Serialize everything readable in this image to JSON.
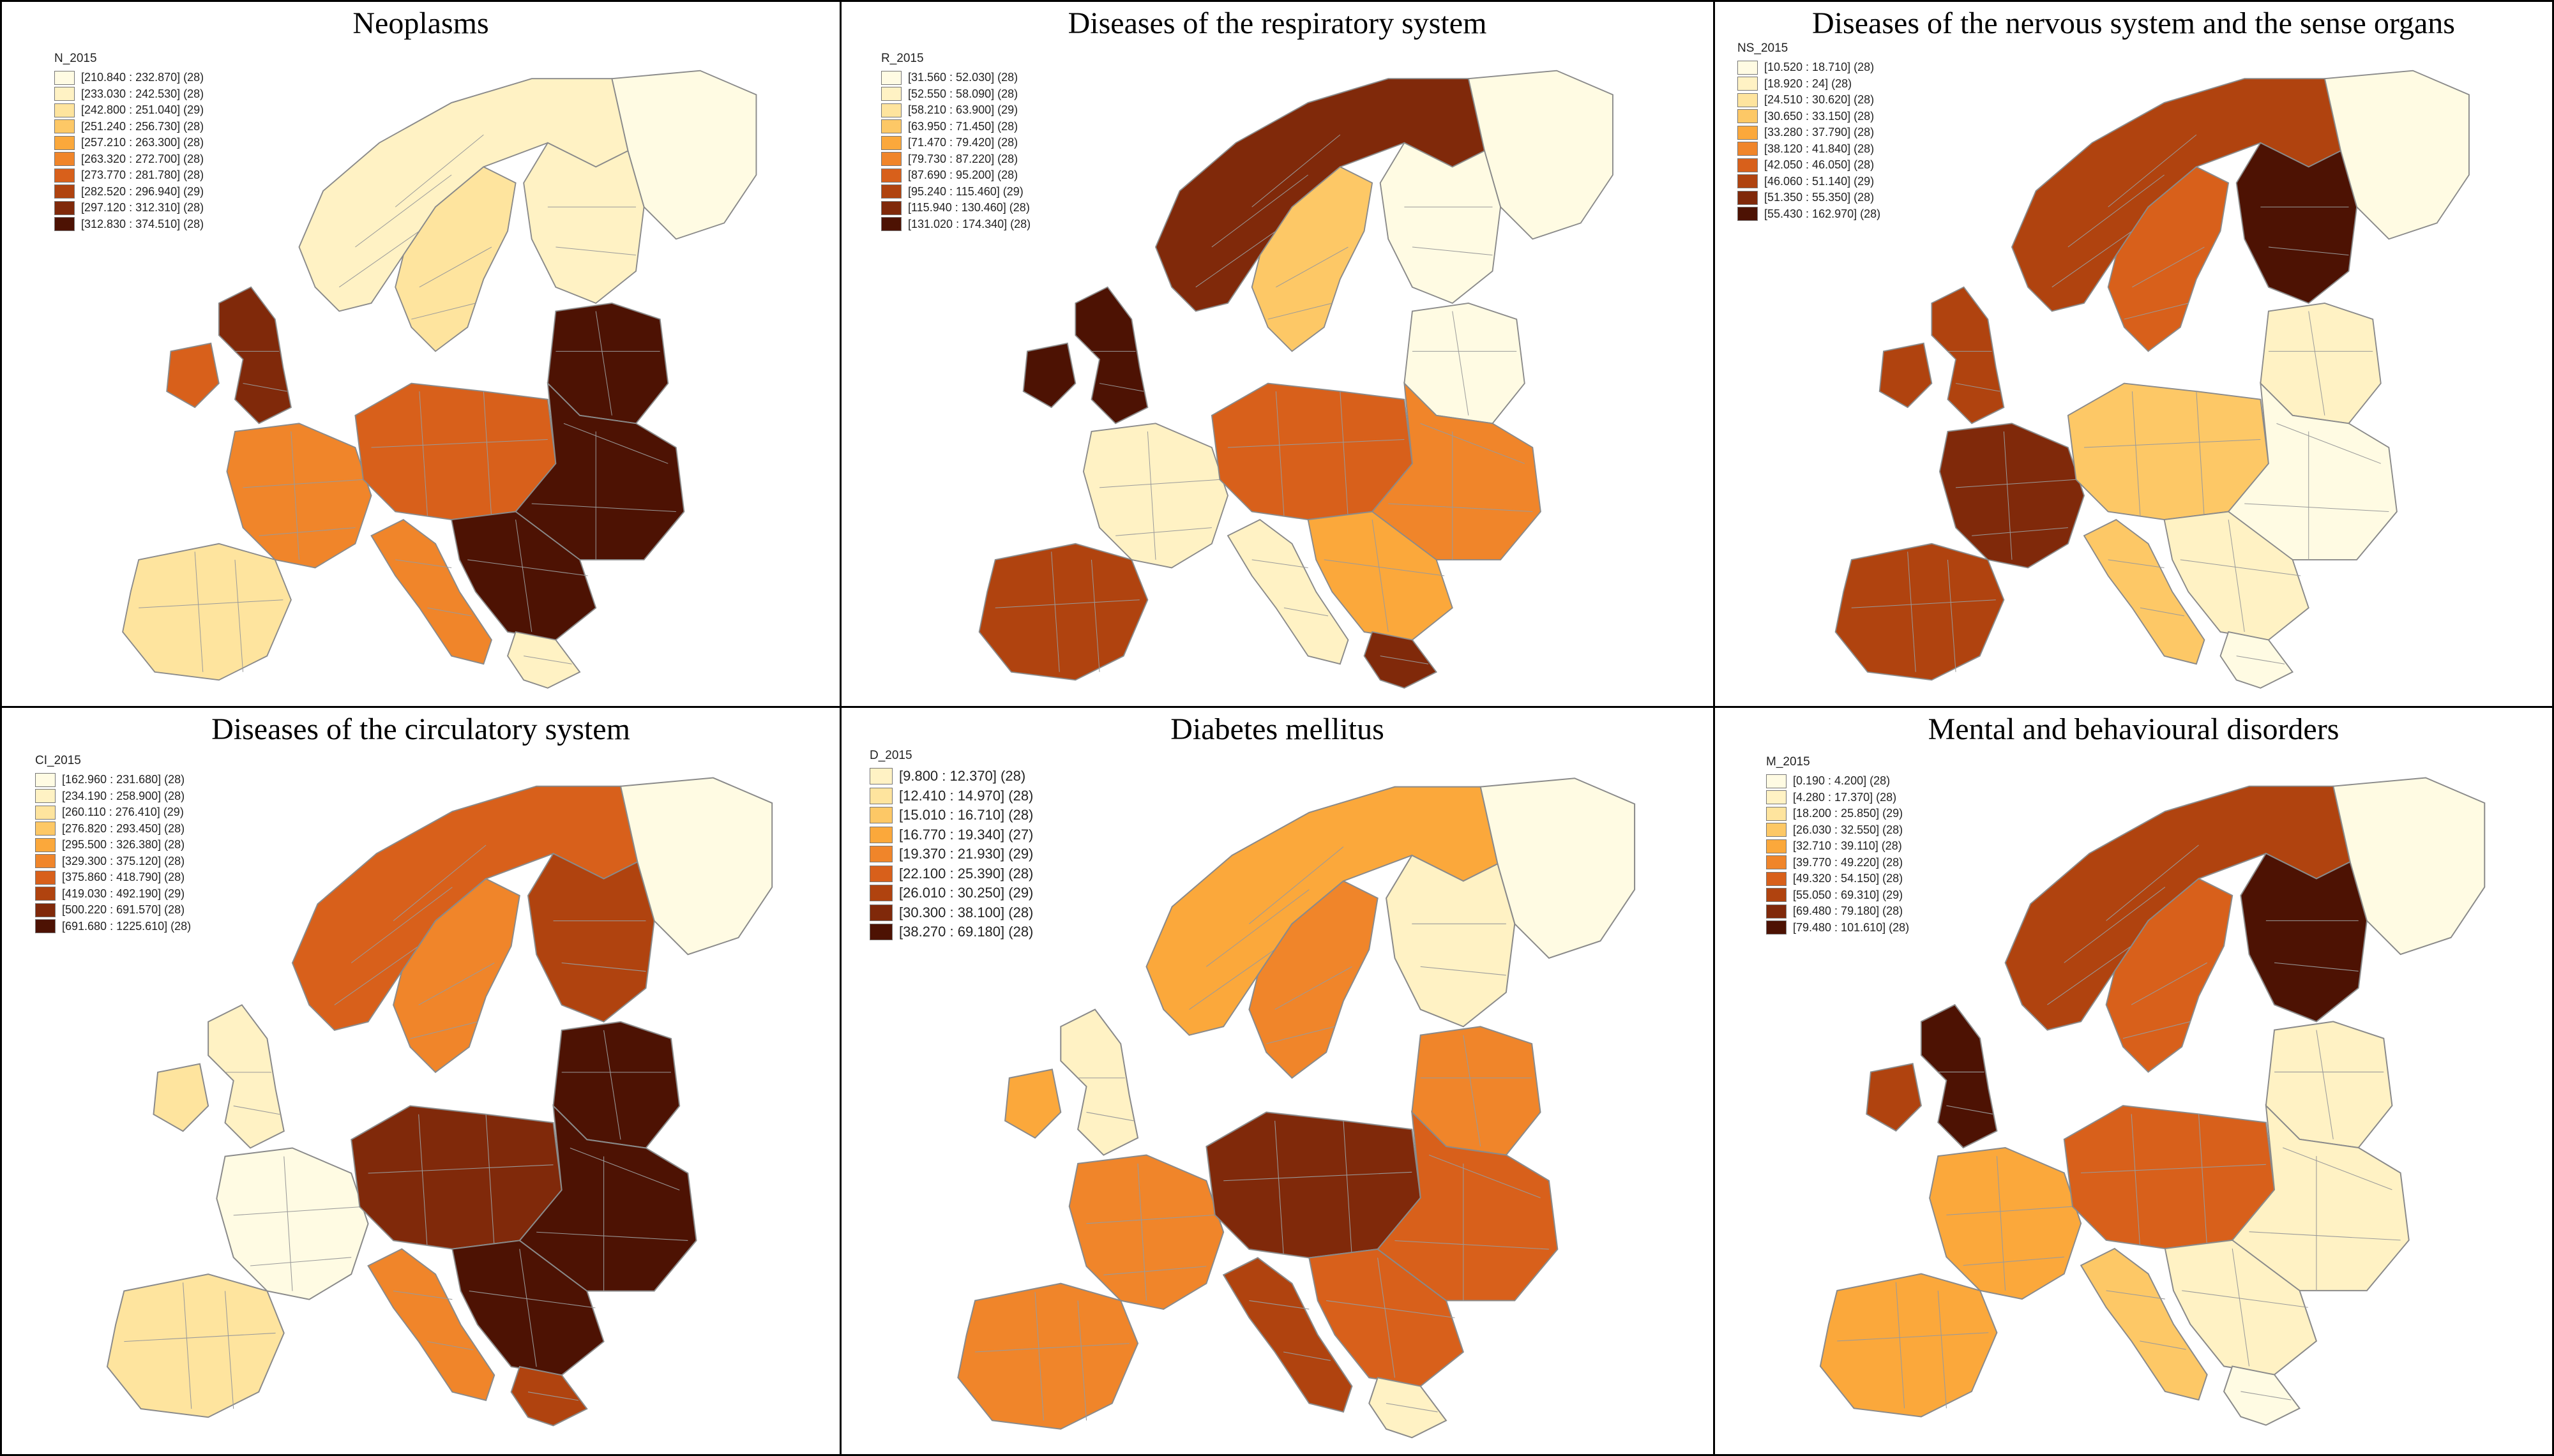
{
  "palette": [
    "#fffbe3",
    "#fff2c4",
    "#fee49e",
    "#fdc866",
    "#fba83b",
    "#f0852a",
    "#d8601b",
    "#b0430f",
    "#80290a",
    "#4d1203"
  ],
  "panels": [
    {
      "title": "Neoplasms",
      "variable": "N_2015",
      "legend": [
        "[210.840 : 232.870] (28)",
        "[233.030 : 242.530] (28)",
        "[242.800 : 251.040] (29)",
        "[251.240 : 256.730] (28)",
        "[257.210 : 263.300] (28)",
        "[263.320 : 272.700] (28)",
        "[273.770 : 281.780] (28)",
        "[282.520 : 296.940] (29)",
        "[297.120 : 312.310] (28)",
        "[312.830 : 374.510] (28)"
      ],
      "map_classes": {
        "north": 1,
        "scand": 2,
        "finland": 1,
        "baltic": 9,
        "uk": 8,
        "ireland": 6,
        "france": 5,
        "iberia": 2,
        "central": 6,
        "east": 9,
        "balkans": 9,
        "italy": 5,
        "greece": 1,
        "russiaN": 0
      }
    },
    {
      "title": "Diseases of the respiratory system",
      "variable": "R_2015",
      "legend": [
        "[31.560 : 52.030] (28)",
        "[52.550 : 58.090] (28)",
        "[58.210 : 63.900] (29)",
        "[63.950 : 71.450] (28)",
        "[71.470 : 79.420] (28)",
        "[79.730 : 87.220] (28)",
        "[87.690 : 95.200] (28)",
        "[95.240 : 115.460] (29)",
        "[115.940 : 130.460] (28)",
        "[131.020 : 174.340] (28)"
      ],
      "map_classes": {
        "north": 8,
        "scand": 3,
        "finland": 0,
        "baltic": 0,
        "uk": 9,
        "ireland": 9,
        "france": 1,
        "iberia": 7,
        "central": 6,
        "east": 5,
        "balkans": 4,
        "italy": 1,
        "greece": 8,
        "russiaN": 0
      }
    },
    {
      "title": "Diseases of the nervous system and the sense organs",
      "variable": "NS_2015",
      "legend": [
        "[10.520 : 18.710] (28)",
        "[18.920 : 24] (28)",
        "[24.510 : 30.620] (28)",
        "[30.650 : 33.150] (28)",
        "[33.280 : 37.790] (28)",
        "[38.120 : 41.840] (28)",
        "[42.050 : 46.050] (28)",
        "[46.060 : 51.140] (29)",
        "[51.350 : 55.350] (28)",
        "[55.430 : 162.970] (28)"
      ],
      "map_classes": {
        "north": 7,
        "scand": 6,
        "finland": 9,
        "baltic": 1,
        "uk": 7,
        "ireland": 7,
        "france": 8,
        "iberia": 7,
        "central": 3,
        "east": 0,
        "balkans": 1,
        "italy": 3,
        "greece": 0,
        "russiaN": 0
      }
    },
    {
      "title": "Diseases of the circulatory system",
      "variable": "CI_2015",
      "legend": [
        "[162.960 : 231.680] (28)",
        "[234.190 : 258.900] (28)",
        "[260.110 : 276.410] (29)",
        "[276.820 : 293.450] (28)",
        "[295.500 : 326.380] (28)",
        "[329.300 : 375.120] (28)",
        "[375.860 : 418.790] (28)",
        "[419.030 : 492.190] (29)",
        "[500.220 : 691.570] (28)",
        "[691.680 : 1225.610] (28)"
      ],
      "map_classes": {
        "north": 6,
        "scand": 5,
        "finland": 7,
        "baltic": 9,
        "uk": 1,
        "ireland": 2,
        "france": 0,
        "iberia": 2,
        "central": 8,
        "east": 9,
        "balkans": 9,
        "italy": 5,
        "greece": 7,
        "russiaN": 0
      }
    },
    {
      "title": "Diabetes mellitus",
      "variable": "D_2015",
      "legend": [
        "[9.800 : 12.370] (28)",
        "[12.410 : 14.970] (28)",
        "[15.010 : 16.710] (28)",
        "[16.770 : 19.340] (27)",
        "[19.370 : 21.930] (29)",
        "[22.100 : 25.390] (28)",
        "[26.010 : 30.250] (29)",
        "[30.300 : 38.100] (28)",
        "[38.270 : 69.180] (28)"
      ],
      "map_classes": {
        "north": 4,
        "scand": 5,
        "finland": 1,
        "baltic": 5,
        "uk": 1,
        "ireland": 4,
        "france": 5,
        "iberia": 5,
        "central": 8,
        "east": 6,
        "balkans": 6,
        "italy": 7,
        "greece": 1,
        "russiaN": 0
      }
    },
    {
      "title": "Mental and behavioural disorders",
      "variable": "M_2015",
      "legend": [
        "[0.190 : 4.200] (28)",
        "[4.280 : 17.370] (28)",
        "[18.200 : 25.850] (29)",
        "[26.030 : 32.550] (28)",
        "[32.710 : 39.110] (28)",
        "[39.770 : 49.220] (28)",
        "[49.320 : 54.150] (28)",
        "[55.050 : 69.310] (29)",
        "[69.480 : 79.180] (28)",
        "[79.480 : 101.610] (28)"
      ],
      "map_classes": {
        "north": 7,
        "scand": 6,
        "finland": 9,
        "baltic": 1,
        "uk": 9,
        "ireland": 7,
        "france": 4,
        "iberia": 4,
        "central": 6,
        "east": 1,
        "balkans": 1,
        "italy": 3,
        "greece": 0,
        "russiaN": 0
      }
    }
  ]
}
